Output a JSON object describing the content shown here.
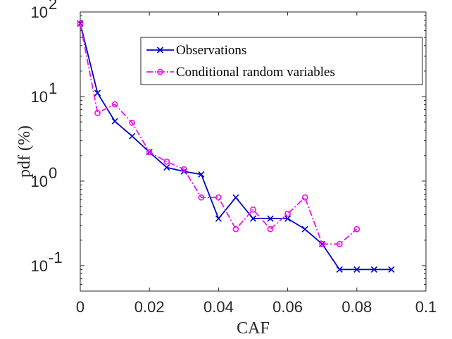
{
  "chart_data": {
    "type": "line",
    "xlabel": "CAF",
    "ylabel": "pdf (%)",
    "xlim": [
      0,
      0.1
    ],
    "ylim": [
      0.05,
      100
    ],
    "yscale": "log",
    "x_ticks": [
      0,
      0.02,
      0.04,
      0.06,
      0.08,
      0.1
    ],
    "x_tick_labels": [
      "0",
      "0.02",
      "0.04",
      "0.06",
      "0.08",
      "0.1"
    ],
    "y_ticks": [
      0.1,
      1,
      10,
      100
    ],
    "y_tick_labels": [
      {
        "base": "10",
        "exp": "-1"
      },
      {
        "base": "10",
        "exp": "0"
      },
      {
        "base": "10",
        "exp": "1"
      },
      {
        "base": "10",
        "exp": "2"
      }
    ],
    "grid": false,
    "legend_position": "top-right",
    "series": [
      {
        "name": "Observations",
        "color": "#0000cc",
        "line_style": "solid",
        "marker": "x",
        "x": [
          0,
          0.005,
          0.01,
          0.015,
          0.02,
          0.025,
          0.03,
          0.035,
          0.04,
          0.045,
          0.05,
          0.055,
          0.06,
          0.065,
          0.07,
          0.075,
          0.08,
          0.085,
          0.09
        ],
        "y": [
          73,
          11,
          5.1,
          3.4,
          2.2,
          1.45,
          1.3,
          1.2,
          0.36,
          0.64,
          0.36,
          0.36,
          0.36,
          0.27,
          0.18,
          0.09,
          0.09,
          0.09,
          0.09
        ]
      },
      {
        "name": "Conditional random variables",
        "color": "#ee11ee",
        "line_style": "dashdot",
        "marker": "o",
        "x": [
          0,
          0.005,
          0.01,
          0.015,
          0.02,
          0.025,
          0.03,
          0.035,
          0.04,
          0.045,
          0.05,
          0.055,
          0.06,
          0.065,
          0.07,
          0.075,
          0.08
        ],
        "y": [
          73,
          6.4,
          8.1,
          4.9,
          2.2,
          1.7,
          1.38,
          0.64,
          0.64,
          0.27,
          0.46,
          0.27,
          0.41,
          0.64,
          0.18,
          0.18,
          0.27
        ]
      }
    ]
  }
}
